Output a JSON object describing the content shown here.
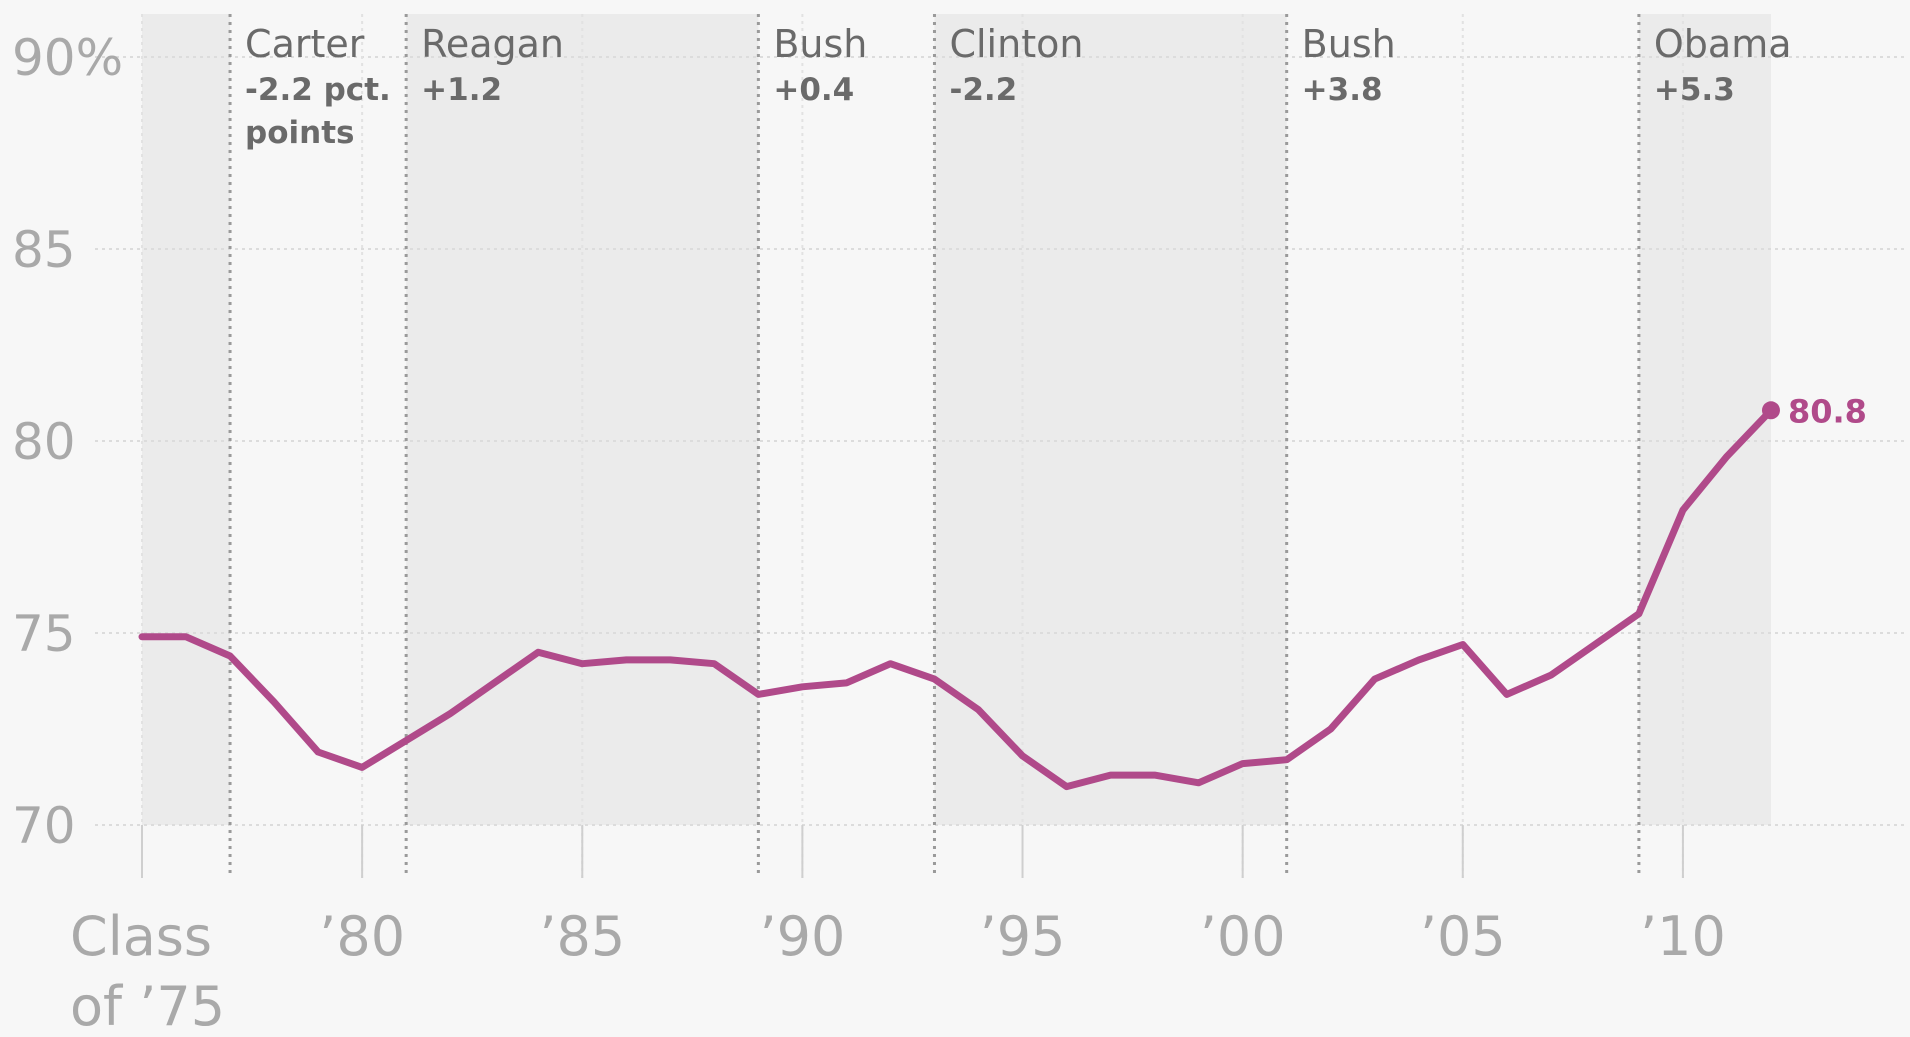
{
  "chart_data": {
    "type": "line",
    "title": "",
    "xlabel": "",
    "ylabel": "",
    "ylim": [
      70,
      90
    ],
    "xlim": [
      1975,
      2013
    ],
    "grid": true,
    "line_color": "#b04a8a",
    "shade_color": "#ebebeb",
    "y_ticks": [
      {
        "value": 90,
        "label": "90%"
      },
      {
        "value": 85,
        "label": "85"
      },
      {
        "value": 80,
        "label": "80"
      },
      {
        "value": 75,
        "label": "75"
      },
      {
        "value": 70,
        "label": "70"
      }
    ],
    "x_ticks": [
      {
        "value": 1975,
        "label": [
          "Class",
          "of ’75"
        ]
      },
      {
        "value": 1980,
        "label": [
          "’80"
        ]
      },
      {
        "value": 1985,
        "label": [
          "’85"
        ]
      },
      {
        "value": 1990,
        "label": [
          "’90"
        ]
      },
      {
        "value": 1995,
        "label": [
          "’95"
        ]
      },
      {
        "value": 2000,
        "label": [
          "’00"
        ]
      },
      {
        "value": 2005,
        "label": [
          "’05"
        ]
      },
      {
        "value": 2010,
        "label": [
          "’10"
        ]
      }
    ],
    "x_minor_ticks": [
      1975,
      1980,
      1985,
      1990,
      1995,
      2000,
      2005,
      2010
    ],
    "eras": [
      {
        "start": 1975,
        "end": 1977,
        "shaded": true,
        "name": "",
        "change": []
      },
      {
        "start": 1977,
        "end": 1981,
        "shaded": false,
        "name": "Carter",
        "change": [
          "-2.2 pct.",
          "points"
        ]
      },
      {
        "start": 1981,
        "end": 1989,
        "shaded": true,
        "name": "Reagan",
        "change": [
          "+1.2"
        ]
      },
      {
        "start": 1989,
        "end": 1993,
        "shaded": false,
        "name": "Bush",
        "change": [
          "+0.4"
        ]
      },
      {
        "start": 1993,
        "end": 2001,
        "shaded": true,
        "name": "Clinton",
        "change": [
          "-2.2"
        ]
      },
      {
        "start": 2001,
        "end": 2009,
        "shaded": false,
        "name": "Bush",
        "change": [
          "+3.8"
        ]
      },
      {
        "start": 2009,
        "end": 2012,
        "shaded": true,
        "name": "Obama",
        "change": [
          "+5.3"
        ]
      }
    ],
    "series": [
      {
        "x": [
          1975,
          1976,
          1977,
          1978,
          1979,
          1980,
          1981,
          1982,
          1983,
          1984,
          1985,
          1986,
          1987,
          1988,
          1989,
          1990,
          1991,
          1992,
          1993,
          1994,
          1995,
          1996,
          1997,
          1998,
          1999,
          2000,
          2001,
          2002,
          2003,
          2004,
          2005,
          2006,
          2007,
          2008,
          2009,
          2010,
          2011,
          2012
        ],
        "values": [
          74.9,
          74.9,
          74.4,
          73.2,
          71.9,
          71.5,
          72.2,
          72.9,
          73.7,
          74.5,
          74.2,
          74.3,
          74.3,
          74.2,
          73.4,
          73.6,
          73.7,
          74.2,
          73.8,
          73.0,
          71.8,
          71.0,
          71.3,
          71.3,
          71.1,
          71.6,
          71.7,
          72.5,
          73.8,
          74.3,
          74.7,
          73.4,
          73.9,
          74.7,
          75.5,
          78.2,
          79.6,
          80.8
        ]
      }
    ],
    "annotations": [
      {
        "x": 2012,
        "y": 80.8,
        "label": "80.8"
      }
    ]
  }
}
